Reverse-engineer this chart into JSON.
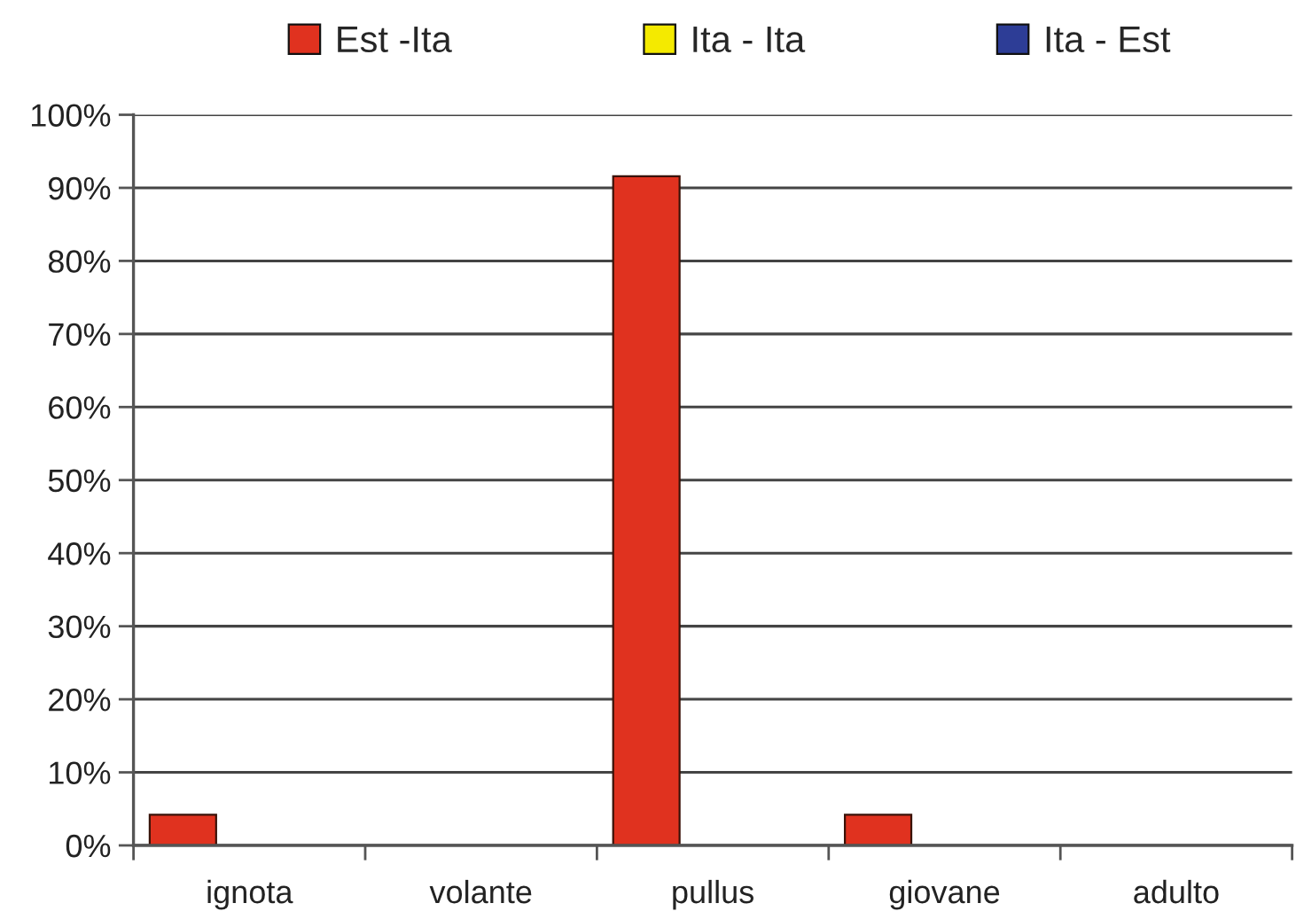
{
  "chart_data": {
    "type": "bar",
    "categories": [
      "ignota",
      "volante",
      "pullus",
      "giovane",
      "adulto"
    ],
    "series": [
      {
        "name": "Est -Ita",
        "color": "#e0321f",
        "values": [
          4.2,
          null,
          91.6,
          4.2,
          null
        ]
      },
      {
        "name": "Ita - Ita",
        "color": "#f4ea00",
        "values": [
          null,
          null,
          null,
          null,
          null
        ]
      },
      {
        "name": "Ita - Est",
        "color": "#2d3d96",
        "values": [
          null,
          null,
          null,
          null,
          null
        ]
      }
    ],
    "ylim": [
      0,
      100
    ],
    "yticks": [
      {
        "value": 0,
        "label": "0%"
      },
      {
        "value": 10,
        "label": "10%"
      },
      {
        "value": 20,
        "label": "20%"
      },
      {
        "value": 30,
        "label": "30%"
      },
      {
        "value": 40,
        "label": "40%"
      },
      {
        "value": 50,
        "label": "50%"
      },
      {
        "value": 60,
        "label": "60%"
      },
      {
        "value": 70,
        "label": "70%"
      },
      {
        "value": 80,
        "label": "80%"
      },
      {
        "value": 90,
        "label": "90%"
      },
      {
        "value": 100,
        "label": "100%"
      }
    ],
    "grid": "y",
    "legend": "top"
  }
}
